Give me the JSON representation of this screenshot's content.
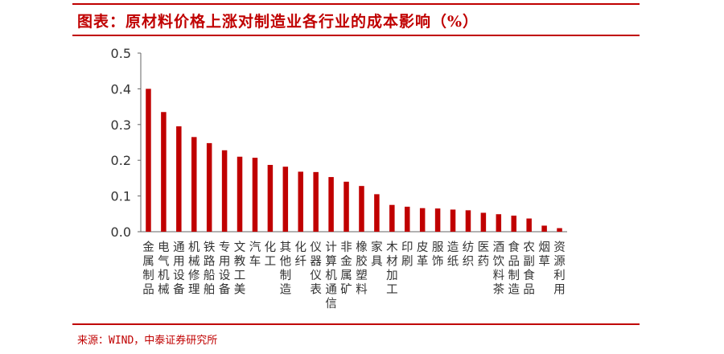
{
  "header": {
    "title": "图表：原材料价格上涨对制造业各行业的成本影响（%）"
  },
  "footer": {
    "source": "来源：WIND，中泰证券研究所"
  },
  "chart_data": {
    "type": "bar",
    "title": "图表：原材料价格上涨对制造业各行业的成本影响（%）",
    "xlabel": "",
    "ylabel": "",
    "ylim": [
      0,
      0.5
    ],
    "yticks": [
      "0.0",
      "0.1",
      "0.2",
      "0.3",
      "0.4",
      "0.5"
    ],
    "grid": false,
    "legend": "none",
    "bar_color": "#c00000",
    "categories": [
      "金属制品",
      "电气机械",
      "通用设备",
      "机械修理",
      "铁路船舶",
      "专用设备",
      "文教工美",
      "汽车",
      "化工",
      "其他制造",
      "化纤",
      "仪器仪表",
      "计算机通信",
      "非金属矿",
      "橡胶塑料",
      "家具",
      "木材加工",
      "印刷",
      "皮革",
      "服饰",
      "造纸",
      "纺织",
      "医药",
      "酒饮料茶",
      "食品制造",
      "农副食品",
      "烟草",
      "资源利用"
    ],
    "values": [
      0.4,
      0.335,
      0.295,
      0.265,
      0.248,
      0.228,
      0.21,
      0.207,
      0.187,
      0.182,
      0.168,
      0.167,
      0.153,
      0.14,
      0.128,
      0.105,
      0.075,
      0.07,
      0.066,
      0.065,
      0.062,
      0.06,
      0.053,
      0.049,
      0.045,
      0.037,
      0.017,
      0.01
    ]
  }
}
